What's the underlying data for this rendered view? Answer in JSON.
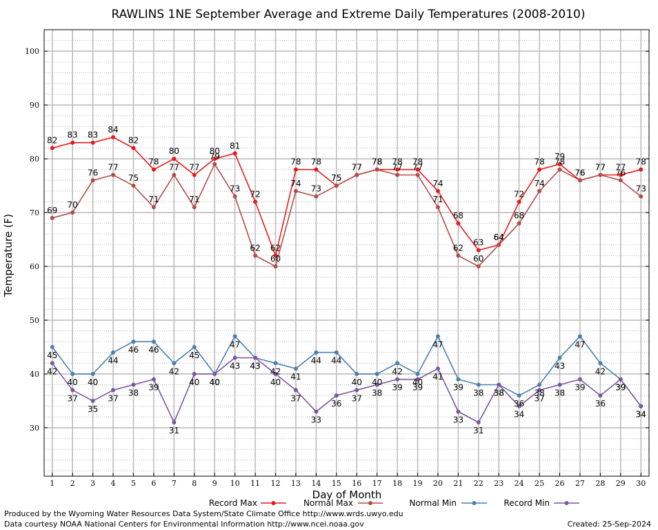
{
  "chart_data": {
    "type": "line",
    "title": "RAWLINS 1NE September Average and Extreme Daily Temperatures (2008-2010)",
    "xlabel": "Day of Month",
    "ylabel": "Temperature (F)",
    "x": [
      1,
      2,
      3,
      4,
      5,
      6,
      7,
      8,
      9,
      10,
      11,
      12,
      13,
      14,
      15,
      16,
      17,
      18,
      19,
      20,
      21,
      22,
      23,
      24,
      25,
      26,
      27,
      28,
      29,
      30
    ],
    "xlim": [
      0.6,
      30.4
    ],
    "ylim": [
      21,
      104
    ],
    "yticks": [
      30,
      40,
      50,
      60,
      70,
      80,
      90,
      100
    ],
    "grid": true,
    "legend_position": "bottom",
    "series": [
      {
        "name": "Record Max",
        "color": "#e8191b",
        "values": [
          82,
          83,
          83,
          84,
          82,
          78,
          80,
          77,
          80,
          81,
          72,
          62,
          78,
          78,
          75,
          77,
          78,
          78,
          78,
          74,
          68,
          63,
          64,
          72,
          78,
          79,
          76,
          77,
          77,
          78
        ]
      },
      {
        "name": "Normal Max",
        "color": "#b24b4b",
        "values": [
          69,
          70,
          76,
          77,
          75,
          71,
          77,
          71,
          79,
          73,
          62,
          60,
          74,
          73,
          75,
          77,
          78,
          77,
          77,
          71,
          62,
          60,
          64,
          68,
          74,
          78,
          76,
          77,
          76,
          73
        ]
      },
      {
        "name": "Normal Min",
        "color": "#4a7fb0",
        "values": [
          45,
          40,
          40,
          44,
          46,
          46,
          42,
          45,
          40,
          47,
          43,
          42,
          41,
          44,
          44,
          40,
          40,
          42,
          40,
          47,
          39,
          38,
          38,
          36,
          38,
          43,
          47,
          42,
          39,
          34
        ]
      },
      {
        "name": "Record Min",
        "color": "#7a56a0",
        "values": [
          42,
          37,
          35,
          37,
          38,
          39,
          31,
          40,
          40,
          43,
          43,
          40,
          37,
          33,
          36,
          37,
          38,
          39,
          39,
          41,
          33,
          31,
          38,
          34,
          37,
          38,
          39,
          36,
          39,
          34
        ]
      }
    ]
  },
  "footer": {
    "produced_by": "Produced by the Wyoming Water Resources Data System/State Climate Office http://www.wrds.uwyo.edu",
    "courtesy": "Data courtesy NOAA National Centers for Environmental Information http://www.ncei.noaa.gov",
    "created": "Created:  25-Sep-2024"
  }
}
